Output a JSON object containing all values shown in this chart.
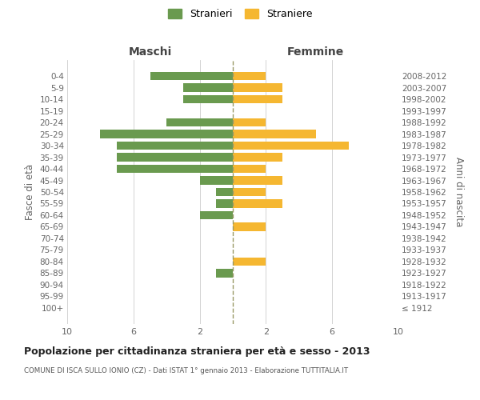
{
  "age_groups": [
    "100+",
    "95-99",
    "90-94",
    "85-89",
    "80-84",
    "75-79",
    "70-74",
    "65-69",
    "60-64",
    "55-59",
    "50-54",
    "45-49",
    "40-44",
    "35-39",
    "30-34",
    "25-29",
    "20-24",
    "15-19",
    "10-14",
    "5-9",
    "0-4"
  ],
  "birth_years": [
    "≤ 1912",
    "1913-1917",
    "1918-1922",
    "1923-1927",
    "1928-1932",
    "1933-1937",
    "1938-1942",
    "1943-1947",
    "1948-1952",
    "1953-1957",
    "1958-1962",
    "1963-1967",
    "1968-1972",
    "1973-1977",
    "1978-1982",
    "1983-1987",
    "1988-1992",
    "1993-1997",
    "1998-2002",
    "2003-2007",
    "2008-2012"
  ],
  "maschi": [
    0,
    0,
    0,
    1,
    0,
    0,
    0,
    0,
    2,
    1,
    1,
    2,
    7,
    7,
    7,
    8,
    4,
    0,
    3,
    3,
    5
  ],
  "femmine": [
    0,
    0,
    0,
    0,
    2,
    0,
    0,
    2,
    0,
    3,
    2,
    3,
    2,
    3,
    7,
    5,
    2,
    0,
    3,
    3,
    2
  ],
  "male_color": "#6a9a4f",
  "female_color": "#f5b731",
  "center_line_color": "#999966",
  "grid_color": "#cccccc",
  "bg_color": "#ffffff",
  "title": "Popolazione per cittadinanza straniera per età e sesso - 2013",
  "subtitle": "COMUNE DI ISCA SULLO IONIO (CZ) - Dati ISTAT 1° gennaio 2013 - Elaborazione TUTTITALIA.IT",
  "xlabel_left": "Maschi",
  "xlabel_right": "Femmine",
  "ylabel_left": "Fasce di età",
  "ylabel_right": "Anni di nascita",
  "legend_male": "Stranieri",
  "legend_female": "Straniere",
  "xlim": 10,
  "bar_height": 0.7
}
